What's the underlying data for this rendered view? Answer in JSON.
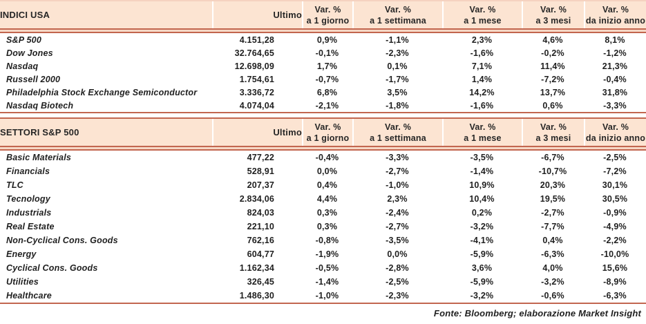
{
  "colors": {
    "header_band_bg": "#fce4d2",
    "rule_dark": "#c2664f",
    "rule_light": "#f6d8c6",
    "text": "#1f1f1f"
  },
  "footer": {
    "source_note": "Fonte: Bloomberg; elaborazione Market Insight"
  },
  "chart_data": [
    {
      "type": "table",
      "title": "INDICI USA",
      "ultimo_label": "Ultimo",
      "var_columns": [
        {
          "top": "Var. %",
          "bottom": "a 1 giorno"
        },
        {
          "top": "Var. %",
          "bottom": "a 1 settimana"
        },
        {
          "top": "Var. %",
          "bottom": "a 1 mese"
        },
        {
          "top": "Var. %",
          "bottom": "a 3 mesi"
        },
        {
          "top": "Var. %",
          "bottom": "da inizio anno"
        }
      ],
      "rows": [
        {
          "name": "S&P 500",
          "ultimo": "4.151,28",
          "d1": "0,9%",
          "w1": "-1,1%",
          "m1": "2,3%",
          "m3": "4,6%",
          "ytd": "8,1%"
        },
        {
          "name": "Dow Jones",
          "ultimo": "32.764,65",
          "d1": "-0,1%",
          "w1": "-2,3%",
          "m1": "-1,6%",
          "m3": "-0,2%",
          "ytd": "-1,2%"
        },
        {
          "name": "Nasdaq",
          "ultimo": "12.698,09",
          "d1": "1,7%",
          "w1": "0,1%",
          "m1": "7,1%",
          "m3": "11,4%",
          "ytd": "21,3%"
        },
        {
          "name": "Russell 2000",
          "ultimo": "1.754,61",
          "d1": "-0,7%",
          "w1": "-1,7%",
          "m1": "1,4%",
          "m3": "-7,2%",
          "ytd": "-0,4%"
        },
        {
          "name": "Philadelphia Stock Exchange Semiconductor",
          "ultimo": "3.336,72",
          "d1": "6,8%",
          "w1": "3,5%",
          "m1": "14,2%",
          "m3": "13,7%",
          "ytd": "31,8%"
        },
        {
          "name": "Nasdaq Biotech",
          "ultimo": "4.074,04",
          "d1": "-2,1%",
          "w1": "-1,8%",
          "m1": "-1,6%",
          "m3": "0,6%",
          "ytd": "-3,3%"
        }
      ]
    },
    {
      "type": "table",
      "title": "SETTORI S&P 500",
      "ultimo_label": "Ultimo",
      "var_columns": [
        {
          "top": "Var. %",
          "bottom": "a 1 giorno"
        },
        {
          "top": "Var. %",
          "bottom": "a 1 settimana"
        },
        {
          "top": "Var. %",
          "bottom": "a 1 mese"
        },
        {
          "top": "Var. %",
          "bottom": "a 3 mesi"
        },
        {
          "top": "Var. %",
          "bottom": "da inizio anno"
        }
      ],
      "rows": [
        {
          "name": "Basic Materials",
          "ultimo": "477,22",
          "d1": "-0,4%",
          "w1": "-3,3%",
          "m1": "-3,5%",
          "m3": "-6,7%",
          "ytd": "-2,5%"
        },
        {
          "name": "Financials",
          "ultimo": "528,91",
          "d1": "0,0%",
          "w1": "-2,7%",
          "m1": "-1,4%",
          "m3": "-10,7%",
          "ytd": "-7,2%"
        },
        {
          "name": "TLC",
          "ultimo": "207,37",
          "d1": "0,4%",
          "w1": "-1,0%",
          "m1": "10,9%",
          "m3": "20,3%",
          "ytd": "30,1%"
        },
        {
          "name": "Tecnology",
          "ultimo": "2.834,06",
          "d1": "4,4%",
          "w1": "2,3%",
          "m1": "10,4%",
          "m3": "19,5%",
          "ytd": "30,5%"
        },
        {
          "name": "Industrials",
          "ultimo": "824,03",
          "d1": "0,3%",
          "w1": "-2,4%",
          "m1": "0,2%",
          "m3": "-2,7%",
          "ytd": "-0,9%"
        },
        {
          "name": "Real Estate",
          "ultimo": "221,10",
          "d1": "0,3%",
          "w1": "-2,7%",
          "m1": "-3,2%",
          "m3": "-7,7%",
          "ytd": "-4,9%"
        },
        {
          "name": "Non-Cyclical Cons. Goods",
          "ultimo": "762,16",
          "d1": "-0,8%",
          "w1": "-3,5%",
          "m1": "-4,1%",
          "m3": "0,4%",
          "ytd": "-2,2%"
        },
        {
          "name": "Energy",
          "ultimo": "604,77",
          "d1": "-1,9%",
          "w1": "0,0%",
          "m1": "-5,9%",
          "m3": "-6,3%",
          "ytd": "-10,0%"
        },
        {
          "name": "Cyclical Cons. Goods",
          "ultimo": "1.162,34",
          "d1": "-0,5%",
          "w1": "-2,8%",
          "m1": "3,6%",
          "m3": "4,0%",
          "ytd": "15,6%"
        },
        {
          "name": "Utilities",
          "ultimo": "326,45",
          "d1": "-1,4%",
          "w1": "-2,5%",
          "m1": "-5,9%",
          "m3": "-3,2%",
          "ytd": "-8,9%"
        },
        {
          "name": "Healthcare",
          "ultimo": "1.486,30",
          "d1": "-1,0%",
          "w1": "-2,3%",
          "m1": "-3,2%",
          "m3": "-0,6%",
          "ytd": "-6,3%"
        }
      ]
    }
  ]
}
